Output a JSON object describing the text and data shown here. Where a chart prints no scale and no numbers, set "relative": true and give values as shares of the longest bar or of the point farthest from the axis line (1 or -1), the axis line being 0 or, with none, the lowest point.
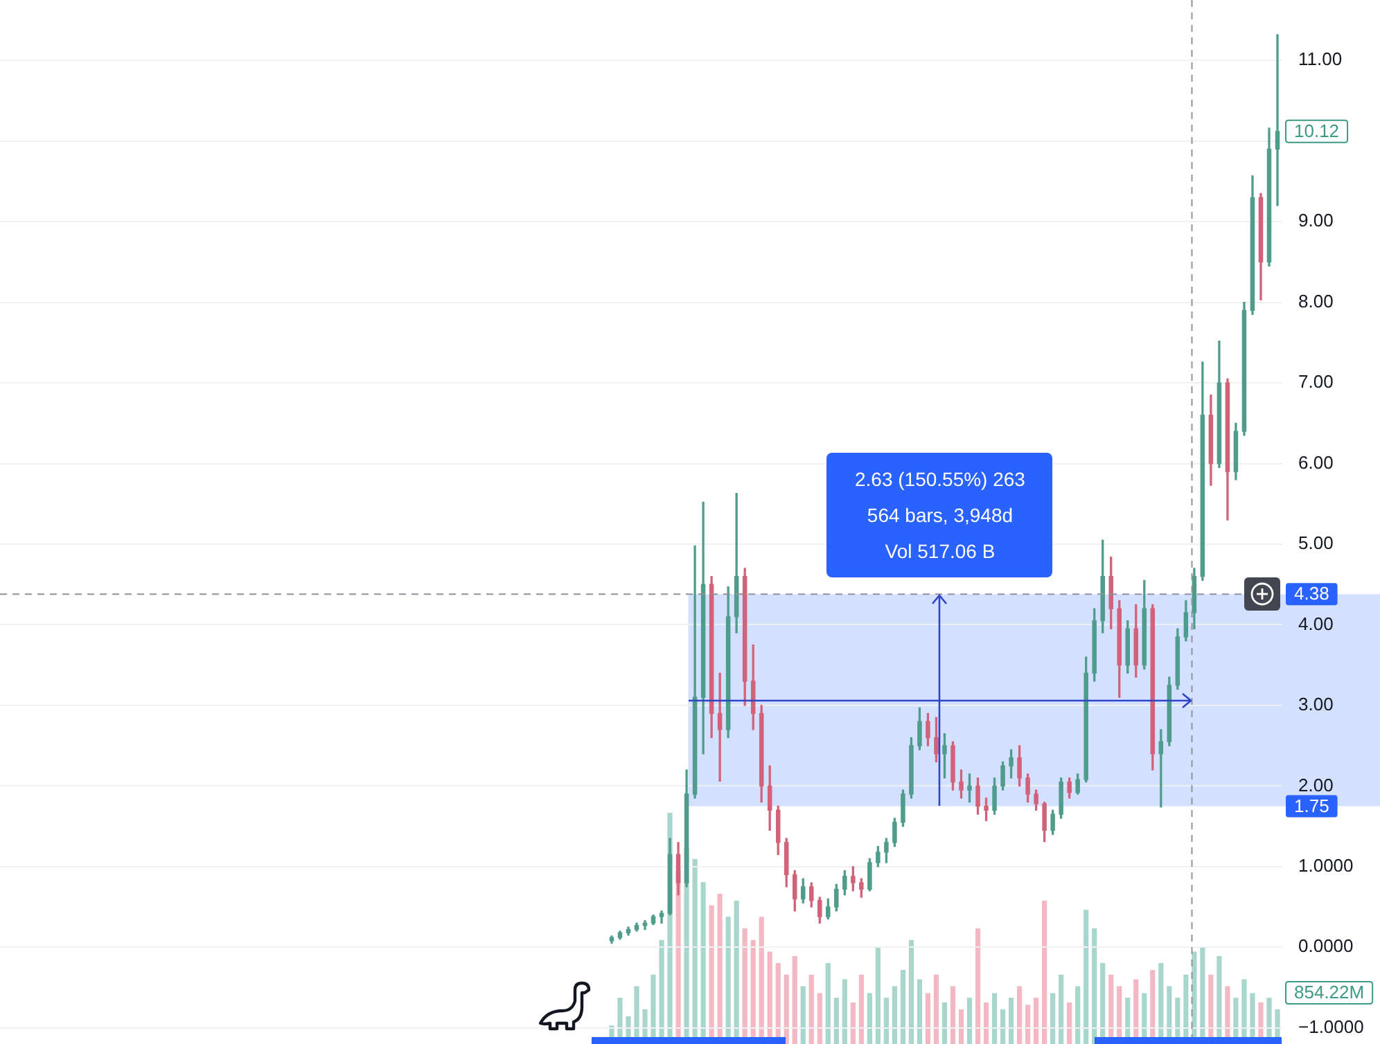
{
  "chart_data": [
    {
      "type": "candlestick",
      "categories": [
        null,
        null,
        null,
        null,
        null,
        null,
        null,
        null,
        null,
        null,
        null,
        null,
        null,
        null,
        null,
        null,
        null,
        null,
        null,
        null,
        null,
        null,
        null,
        null,
        null,
        null,
        null,
        null,
        null,
        null,
        null,
        null,
        null,
        null,
        null,
        null,
        null,
        null,
        null,
        null,
        null,
        null,
        null,
        null,
        null,
        null,
        null,
        null,
        null,
        null,
        null,
        null,
        null,
        null,
        null,
        null,
        null,
        null,
        null,
        null,
        null,
        null,
        null,
        null,
        null,
        null,
        null,
        null,
        null,
        null,
        null,
        null,
        null,
        null,
        null,
        null,
        null,
        null,
        null,
        null,
        null,
        null,
        null,
        null,
        null,
        null,
        null,
        null,
        null,
        null,
        null,
        null,
        null,
        null,
        null,
        null,
        null,
        null,
        null,
        null,
        null,
        null,
        null,
        null,
        null,
        null,
        null,
        null,
        null,
        null,
        null,
        null,
        null,
        null,
        null,
        null,
        null,
        null,
        null,
        null,
        null,
        null,
        null,
        null,
        null,
        null,
        null,
        null,
        null,
        null,
        null,
        null,
        null,
        null,
        null,
        null,
        null,
        null,
        null,
        null,
        null,
        null,
        null,
        null,
        null,
        null,
        null,
        null,
        null,
        null,
        null,
        null,
        null,
        null
      ],
      "ohlc": [
        null,
        null,
        null,
        null,
        null,
        null,
        null,
        null,
        null,
        null,
        null,
        null,
        null,
        null,
        null,
        null,
        null,
        null,
        null,
        null,
        null,
        null,
        null,
        null,
        null,
        null,
        null,
        null,
        null,
        null,
        null,
        null,
        null,
        null,
        null,
        null,
        null,
        null,
        null,
        null,
        null,
        null,
        null,
        null,
        null,
        null,
        null,
        null,
        null,
        null,
        null,
        null,
        null,
        null,
        null,
        null,
        null,
        null,
        null,
        null,
        null,
        null,
        null,
        null,
        null,
        null,
        null,
        null,
        null,
        null,
        null,
        null,
        null,
        [
          0.08,
          0.14,
          0.05,
          0.12
        ],
        [
          0.12,
          0.2,
          0.1,
          0.18
        ],
        [
          0.18,
          0.25,
          0.15,
          0.22
        ],
        [
          0.22,
          0.3,
          0.2,
          0.27
        ],
        [
          0.27,
          0.33,
          0.22,
          0.3
        ],
        [
          0.3,
          0.4,
          0.28,
          0.38
        ],
        [
          0.38,
          0.45,
          0.3,
          0.42
        ],
        [
          0.42,
          1.35,
          0.4,
          1.15
        ],
        [
          1.15,
          1.3,
          0.65,
          0.8
        ],
        [
          0.8,
          2.2,
          0.75,
          1.9
        ],
        [
          1.9,
          4.98,
          1.85,
          3.1
        ],
        [
          3.1,
          5.52,
          2.4,
          4.5
        ],
        [
          4.5,
          4.6,
          2.6,
          2.9
        ],
        [
          2.9,
          3.4,
          2.06,
          2.7
        ],
        [
          2.7,
          4.47,
          2.6,
          4.1
        ],
        [
          4.1,
          5.63,
          3.9,
          4.6
        ],
        [
          4.6,
          4.7,
          3.0,
          3.3
        ],
        [
          3.3,
          3.75,
          2.7,
          2.9
        ],
        [
          2.9,
          3.0,
          1.8,
          2.0
        ],
        [
          2.0,
          2.25,
          1.45,
          1.7
        ],
        [
          1.7,
          1.75,
          1.15,
          1.3
        ],
        [
          1.3,
          1.35,
          0.75,
          0.9
        ],
        [
          0.9,
          0.95,
          0.45,
          0.6
        ],
        [
          0.6,
          0.85,
          0.55,
          0.75
        ],
        [
          0.75,
          0.8,
          0.5,
          0.58
        ],
        [
          0.58,
          0.62,
          0.3,
          0.38
        ],
        [
          0.38,
          0.6,
          0.35,
          0.5
        ],
        [
          0.5,
          0.78,
          0.45,
          0.72
        ],
        [
          0.72,
          0.95,
          0.65,
          0.88
        ],
        [
          0.88,
          1.0,
          0.7,
          0.8
        ],
        [
          0.8,
          0.85,
          0.62,
          0.72
        ],
        [
          0.72,
          1.1,
          0.7,
          1.05
        ],
        [
          1.05,
          1.25,
          1.0,
          1.18
        ],
        [
          1.18,
          1.35,
          1.05,
          1.3
        ],
        [
          1.3,
          1.6,
          1.25,
          1.55
        ],
        [
          1.55,
          1.95,
          1.5,
          1.9
        ],
        [
          1.9,
          2.6,
          1.85,
          2.5
        ],
        [
          2.5,
          2.97,
          2.45,
          2.8
        ],
        [
          2.8,
          2.9,
          2.5,
          2.6
        ],
        [
          2.6,
          2.85,
          2.3,
          2.4
        ],
        [
          2.4,
          2.65,
          2.1,
          2.5
        ],
        [
          2.5,
          2.55,
          1.95,
          2.05
        ],
        [
          2.05,
          2.2,
          1.85,
          1.95
        ],
        [
          1.95,
          2.15,
          1.8,
          2.0
        ],
        [
          2.0,
          2.1,
          1.65,
          1.75
        ],
        [
          1.75,
          1.85,
          1.57,
          1.7
        ],
        [
          1.7,
          2.1,
          1.65,
          2.0
        ],
        [
          2.0,
          2.3,
          1.95,
          2.25
        ],
        [
          2.25,
          2.45,
          2.1,
          2.35
        ],
        [
          2.35,
          2.5,
          2.0,
          2.1
        ],
        [
          2.1,
          2.15,
          1.8,
          1.9
        ],
        [
          1.9,
          1.95,
          1.7,
          1.78
        ],
        [
          1.78,
          1.8,
          1.31,
          1.45
        ],
        [
          1.45,
          1.7,
          1.4,
          1.65
        ],
        [
          1.65,
          2.1,
          1.6,
          2.05
        ],
        [
          2.05,
          2.1,
          1.85,
          1.92
        ],
        [
          1.92,
          2.15,
          1.9,
          2.08
        ],
        [
          2.08,
          3.6,
          2.05,
          3.4
        ],
        [
          3.4,
          4.2,
          3.3,
          4.05
        ],
        [
          4.05,
          5.05,
          3.9,
          4.6
        ],
        [
          4.6,
          4.84,
          3.95,
          4.2
        ],
        [
          4.2,
          4.3,
          3.1,
          3.5
        ],
        [
          3.5,
          4.05,
          3.4,
          3.95
        ],
        [
          3.95,
          4.25,
          3.35,
          3.5
        ],
        [
          3.5,
          4.55,
          3.45,
          4.2
        ],
        [
          4.2,
          4.25,
          2.2,
          2.4
        ],
        [
          2.4,
          2.7,
          1.74,
          2.55
        ],
        [
          2.55,
          3.35,
          2.5,
          3.25
        ],
        [
          3.25,
          3.95,
          3.2,
          3.85
        ],
        [
          3.85,
          4.3,
          3.8,
          4.15
        ],
        [
          4.15,
          4.7,
          3.95,
          4.6
        ],
        [
          4.6,
          7.26,
          4.55,
          6.6
        ],
        [
          6.6,
          6.85,
          5.73,
          6.0
        ],
        [
          6.0,
          7.52,
          5.95,
          7.0
        ],
        [
          7.0,
          7.05,
          5.3,
          5.9
        ],
        [
          5.9,
          6.5,
          5.8,
          6.4
        ],
        [
          6.4,
          8.0,
          6.35,
          7.9
        ],
        [
          7.9,
          9.57,
          7.85,
          9.3
        ],
        [
          9.3,
          9.35,
          8.03,
          8.5
        ],
        [
          8.5,
          10.16,
          8.45,
          9.9
        ],
        [
          9.9,
          11.32,
          9.2,
          10.12
        ]
      ],
      "colors": [
        null,
        null,
        null,
        null,
        null,
        null,
        null,
        null,
        null,
        null,
        null,
        null,
        null,
        null,
        null,
        null,
        null,
        null,
        null,
        null,
        null,
        null,
        null,
        null,
        null,
        null,
        null,
        null,
        null,
        null,
        null,
        null,
        null,
        null,
        null,
        null,
        null,
        null,
        null,
        null,
        null,
        null,
        null,
        null,
        null,
        null,
        null,
        null,
        null,
        null,
        null,
        null,
        null,
        null,
        null,
        null,
        null,
        null,
        null,
        null,
        null,
        null,
        null,
        null,
        null,
        null,
        null,
        null,
        null,
        null,
        null,
        null,
        null,
        "#4f9c8c",
        "#4f9c8c",
        "#4f9c8c",
        "#4f9c8c",
        "#4f9c8c",
        "#4f9c8c",
        "#4f9c8c",
        "#4f9c8c",
        "#d2627a",
        "#4f9c8c",
        "#4f9c8c",
        "#4f9c8c",
        "#d2627a",
        "#d2627a",
        "#4f9c8c",
        "#4f9c8c",
        "#d2627a",
        "#d2627a",
        "#d2627a",
        "#d2627a",
        "#d2627a",
        "#d2627a",
        "#d2627a",
        "#4f9c8c",
        "#d2627a",
        "#d2627a",
        "#4f9c8c",
        "#4f9c8c",
        "#4f9c8c",
        "#d2627a",
        "#d2627a",
        "#4f9c8c",
        "#4f9c8c",
        "#4f9c8c",
        "#4f9c8c",
        "#4f9c8c",
        "#4f9c8c",
        "#4f9c8c",
        "#d2627a",
        "#d2627a",
        "#4f9c8c",
        "#d2627a",
        "#d2627a",
        "#4f9c8c",
        "#d2627a",
        "#d2627a",
        "#4f9c8c",
        "#4f9c8c",
        "#4f9c8c",
        "#d2627a",
        "#d2627a",
        "#d2627a",
        "#d2627a",
        "#4f9c8c",
        "#4f9c8c",
        "#d2627a",
        "#4f9c8c",
        "#4f9c8c",
        "#4f9c8c",
        "#4f9c8c",
        "#d2627a",
        "#d2627a",
        "#4f9c8c",
        "#d2627a",
        "#4f9c8c",
        "#d2627a",
        "#4f9c8c",
        "#4f9c8c",
        "#4f9c8c",
        "#4f9c8c",
        "#4f9c8c",
        "#4f9c8c",
        "#d2627a",
        "#4f9c8c",
        "#d2627a",
        "#4f9c8c",
        "#4f9c8c",
        "#4f9c8c",
        "#d2627a",
        "#4f9c8c",
        "#4f9c8c"
      ],
      "value_labels": [
        null,
        null,
        null,
        null,
        null,
        null,
        null,
        null,
        null,
        null,
        null,
        null,
        null,
        null,
        null,
        null,
        null,
        null,
        null,
        null,
        null,
        null,
        null,
        null,
        null,
        null,
        null,
        null,
        null,
        null,
        null,
        null,
        null,
        null,
        null,
        null,
        null,
        null,
        null,
        null,
        null,
        null,
        null,
        null,
        null,
        null,
        null,
        null,
        null,
        null,
        null,
        null,
        null,
        null,
        null,
        null,
        null,
        null,
        null,
        null,
        null,
        null,
        null,
        null,
        null,
        null,
        null,
        null,
        null,
        null,
        null,
        null,
        null,
        null,
        null,
        null,
        null,
        null,
        null,
        null,
        null,
        null,
        null,
        null,
        null,
        null,
        null,
        null,
        null,
        null,
        null,
        null,
        null,
        null,
        null,
        null,
        null,
        null,
        null,
        null,
        null,
        null,
        null,
        null,
        null,
        null,
        null,
        null,
        null,
        null,
        null,
        null,
        null,
        null,
        null,
        null,
        null,
        null,
        null,
        null,
        null,
        null,
        null,
        null,
        null,
        null,
        null,
        null,
        null,
        null,
        null,
        null,
        null,
        null,
        null,
        null,
        null,
        null,
        null,
        null,
        null,
        null,
        null,
        null,
        null,
        null,
        null,
        null,
        null,
        null,
        null,
        null,
        null,
        "10.12"
      ],
      "ylim": [
        -1.2,
        11.75
      ],
      "yticks": [
        {
          "value": -1,
          "label": "−1.0000"
        },
        {
          "value": 0,
          "label": "0.0000"
        },
        {
          "value": 1,
          "label": "1.0000"
        },
        {
          "value": 2,
          "label": "2.00"
        },
        {
          "value": 3,
          "label": "3.00"
        },
        {
          "value": 4,
          "label": "4.00"
        },
        {
          "value": 5,
          "label": "5.00"
        },
        {
          "value": 6,
          "label": "6.00"
        },
        {
          "value": 7,
          "label": "7.00"
        },
        {
          "value": 8,
          "label": "8.00"
        },
        {
          "value": 9,
          "label": "9.00"
        },
        {
          "value": 10,
          "label": null
        },
        {
          "value": 11,
          "label": "11.00"
        }
      ],
      "grid": "y",
      "tick_labels": "y",
      "ref_lines": [
        {
          "axis": "y",
          "value": 4.38,
          "label": "4.38",
          "line_style": "dashed",
          "color": "#8f939e"
        }
      ],
      "bands": [
        {
          "axis": "y",
          "from": 1.75,
          "to": 4.38,
          "label": "1.75",
          "color": "#2962ff"
        }
      ],
      "annotations": [
        "2.63 (150.55%) 263",
        "564 bars, 3,948d",
        "Vol 517.06 B"
      ]
    },
    {
      "type": "bar",
      "categories": [
        null,
        null,
        null,
        null,
        null,
        null,
        null,
        null,
        null,
        null,
        null,
        null,
        null,
        null,
        null,
        null,
        null,
        null,
        null,
        null,
        null,
        null,
        null,
        null,
        null,
        null,
        null,
        null,
        null,
        null,
        null,
        null,
        null,
        null,
        null,
        null,
        null,
        null,
        null,
        null,
        null,
        null,
        null,
        null,
        null,
        null,
        null,
        null,
        null,
        null,
        null,
        null,
        null,
        null,
        null,
        null,
        null,
        null,
        null,
        null,
        null,
        null,
        null,
        null,
        null,
        null,
        null,
        null,
        null,
        null,
        null,
        null,
        null,
        null,
        null,
        null,
        null,
        null,
        null,
        null,
        null,
        null,
        null,
        null,
        null,
        null,
        null,
        null,
        null,
        null,
        null,
        null,
        null,
        null,
        null,
        null,
        null,
        null,
        null,
        null,
        null,
        null,
        null,
        null,
        null,
        null,
        null,
        null,
        null,
        null,
        null,
        null,
        null,
        null,
        null,
        null,
        null,
        null,
        null,
        null,
        null,
        null,
        null,
        null,
        null,
        null,
        null,
        null,
        null,
        null,
        null,
        null,
        null,
        null,
        null,
        null,
        null,
        null,
        null,
        null,
        null,
        null,
        null,
        null,
        null,
        null,
        null,
        null,
        null,
        null,
        null,
        null,
        null,
        null
      ],
      "values": [
        null,
        null,
        null,
        null,
        null,
        null,
        null,
        null,
        null,
        null,
        null,
        null,
        null,
        null,
        null,
        null,
        null,
        null,
        null,
        null,
        null,
        null,
        null,
        null,
        null,
        null,
        null,
        null,
        null,
        null,
        null,
        null,
        null,
        null,
        null,
        null,
        null,
        null,
        null,
        null,
        null,
        null,
        null,
        null,
        null,
        null,
        null,
        null,
        null,
        null,
        null,
        null,
        null,
        null,
        null,
        null,
        null,
        null,
        null,
        null,
        null,
        null,
        null,
        null,
        null,
        null,
        null,
        null,
        null,
        null,
        null,
        null,
        null,
        0.08,
        0.2,
        0.12,
        0.25,
        0.15,
        0.3,
        0.45,
        1.0,
        0.75,
        0.85,
        0.8,
        0.7,
        0.6,
        0.65,
        0.55,
        0.62,
        0.5,
        0.45,
        0.55,
        0.4,
        0.35,
        0.3,
        0.38,
        0.25,
        0.3,
        0.22,
        0.35,
        0.2,
        0.28,
        0.18,
        0.3,
        0.22,
        0.42,
        0.2,
        0.25,
        0.32,
        0.45,
        0.28,
        0.22,
        0.3,
        0.18,
        0.25,
        0.15,
        0.2,
        0.5,
        0.18,
        0.22,
        0.15,
        0.2,
        0.25,
        0.17,
        0.2,
        0.62,
        0.22,
        0.3,
        0.18,
        0.25,
        0.58,
        0.5,
        0.35,
        0.3,
        0.25,
        0.2,
        0.28,
        0.22,
        0.32,
        0.35,
        0.25,
        0.2,
        0.3,
        0.4,
        0.42,
        0.3,
        0.38,
        0.25,
        0.2,
        0.28,
        0.22,
        0.18,
        0.2,
        0.15
      ],
      "colors": [
        null,
        null,
        null,
        null,
        null,
        null,
        null,
        null,
        null,
        null,
        null,
        null,
        null,
        null,
        null,
        null,
        null,
        null,
        null,
        null,
        null,
        null,
        null,
        null,
        null,
        null,
        null,
        null,
        null,
        null,
        null,
        null,
        null,
        null,
        null,
        null,
        null,
        null,
        null,
        null,
        null,
        null,
        null,
        null,
        null,
        null,
        null,
        null,
        null,
        null,
        null,
        null,
        null,
        null,
        null,
        null,
        null,
        null,
        null,
        null,
        null,
        null,
        null,
        null,
        null,
        null,
        null,
        null,
        null,
        null,
        null,
        null,
        null,
        "#a8d5cc",
        "#a8d5cc",
        "#a8d5cc",
        "#a8d5cc",
        "#a8d5cc",
        "#a8d5cc",
        "#a8d5cc",
        "#a8d5cc",
        "#f4b8c2",
        "#a8d5cc",
        "#a8d5cc",
        "#a8d5cc",
        "#f4b8c2",
        "#f4b8c2",
        "#a8d5cc",
        "#a8d5cc",
        "#f4b8c2",
        "#f4b8c2",
        "#f4b8c2",
        "#f4b8c2",
        "#f4b8c2",
        "#f4b8c2",
        "#f4b8c2",
        "#a8d5cc",
        "#f4b8c2",
        "#f4b8c2",
        "#a8d5cc",
        "#a8d5cc",
        "#a8d5cc",
        "#f4b8c2",
        "#f4b8c2",
        "#a8d5cc",
        "#a8d5cc",
        "#a8d5cc",
        "#a8d5cc",
        "#a8d5cc",
        "#a8d5cc",
        "#a8d5cc",
        "#f4b8c2",
        "#f4b8c2",
        "#a8d5cc",
        "#f4b8c2",
        "#f4b8c2",
        "#a8d5cc",
        "#f4b8c2",
        "#f4b8c2",
        "#a8d5cc",
        "#a8d5cc",
        "#a8d5cc",
        "#f4b8c2",
        "#f4b8c2",
        "#f4b8c2",
        "#f4b8c2",
        "#a8d5cc",
        "#a8d5cc",
        "#f4b8c2",
        "#a8d5cc",
        "#a8d5cc",
        "#a8d5cc",
        "#a8d5cc",
        "#f4b8c2",
        "#f4b8c2",
        "#a8d5cc",
        "#f4b8c2",
        "#a8d5cc",
        "#f4b8c2",
        "#a8d5cc",
        "#a8d5cc",
        "#a8d5cc",
        "#a8d5cc",
        "#a8d5cc",
        "#a8d5cc",
        "#f4b8c2",
        "#a8d5cc",
        "#f4b8c2",
        "#a8d5cc",
        "#a8d5cc",
        "#a8d5cc",
        "#f4b8c2",
        "#a8d5cc",
        "#a8d5cc"
      ],
      "relative": true,
      "tick_labels": false,
      "annotations": [
        "854.22M"
      ]
    }
  ]
}
